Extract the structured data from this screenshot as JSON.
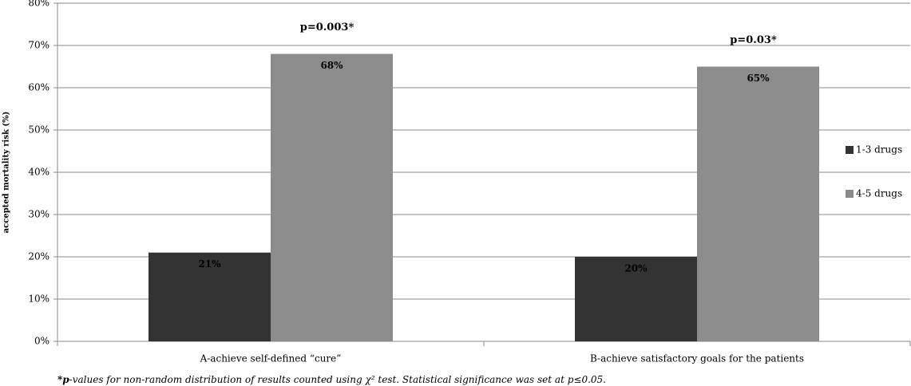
{
  "chart_data": {
    "type": "bar",
    "y_label": "accepted mortality risk (%)",
    "categories": [
      "A-achieve self-defined “cure”",
      "B-achieve satisfactory goals for the patients"
    ],
    "series": [
      {
        "name": "1-3 drugs",
        "color": "#333333",
        "values": [
          21,
          20
        ],
        "value_labels": [
          "21%",
          "20%"
        ]
      },
      {
        "name": "4-5 drugs",
        "color": "#8c8c8c",
        "values": [
          68,
          65
        ],
        "value_labels": [
          "68%",
          "65%"
        ]
      }
    ],
    "annotations": [
      "p=0.003*",
      "p=0.03*"
    ],
    "ylim": [
      0,
      80
    ],
    "yticks": [
      {
        "value": 0,
        "label": "0%"
      },
      {
        "value": 10,
        "label": "10%"
      },
      {
        "value": 20,
        "label": "20%"
      },
      {
        "value": 30,
        "label": "30%"
      },
      {
        "value": 40,
        "label": "40%"
      },
      {
        "value": 50,
        "label": "50%"
      },
      {
        "value": 60,
        "label": "60%"
      },
      {
        "value": 70,
        "label": "70%"
      },
      {
        "value": 80,
        "label": "80%"
      }
    ],
    "grid": true,
    "legend_position": "right",
    "footnote": {
      "bold": "*p",
      "text": "-values for non-random distribution of results counted using χ² test. Statistical significance was set at p≤0.05."
    }
  }
}
